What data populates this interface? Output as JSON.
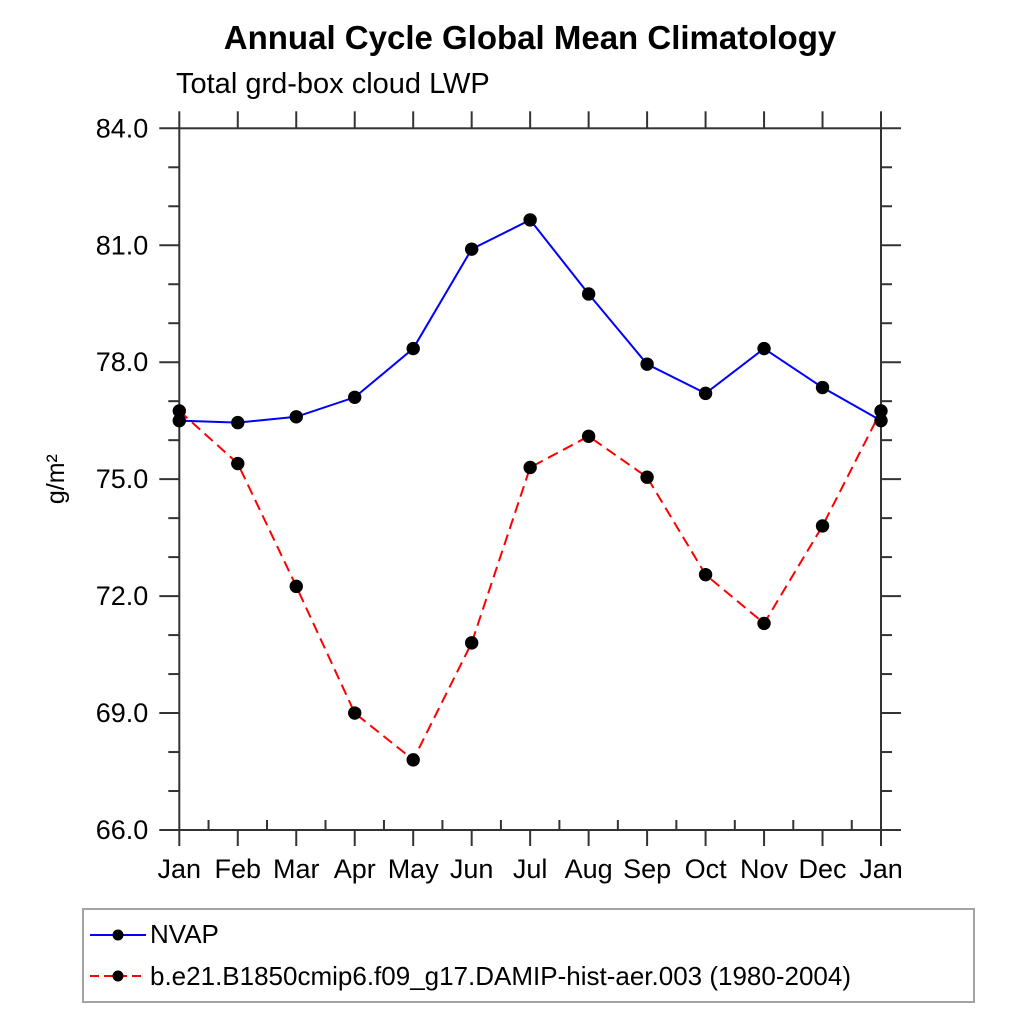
{
  "chart_data": {
    "type": "line",
    "title": "Annual Cycle Global Mean Climatology",
    "subtitle": "Total grd-box cloud LWP",
    "ylabel": "g/m²",
    "categories": [
      "Jan",
      "Feb",
      "Mar",
      "Apr",
      "May",
      "Jun",
      "Jul",
      "Aug",
      "Sep",
      "Oct",
      "Nov",
      "Dec",
      "Jan"
    ],
    "ylim": [
      66.0,
      84.0
    ],
    "ytick_values": [
      66,
      69,
      72,
      75,
      78,
      81,
      84
    ],
    "ytick_labels": [
      "66.0",
      "69.0",
      "72.0",
      "75.0",
      "78.0",
      "81.0",
      "84.0"
    ],
    "y_minor_step": 1.0,
    "grid": false,
    "legend_position": "below-plot-boxed",
    "marker_color": "#000000",
    "axis_color": "#333333",
    "series": [
      {
        "name": "NVAP",
        "color": "#0000ff",
        "line_style": "solid",
        "values": [
          76.5,
          76.45,
          76.6,
          77.1,
          78.35,
          80.9,
          81.65,
          79.75,
          77.95,
          77.2,
          78.35,
          77.35,
          76.5
        ]
      },
      {
        "name": "b.e21.B1850cmip6.f09_g17.DAMIP-hist-aer.003 (1980-2004)",
        "color": "#ff0000",
        "line_style": "dashed",
        "values": [
          76.75,
          75.4,
          72.25,
          69.0,
          67.8,
          70.8,
          75.3,
          76.1,
          75.05,
          72.55,
          71.3,
          73.8,
          76.75
        ]
      }
    ]
  }
}
